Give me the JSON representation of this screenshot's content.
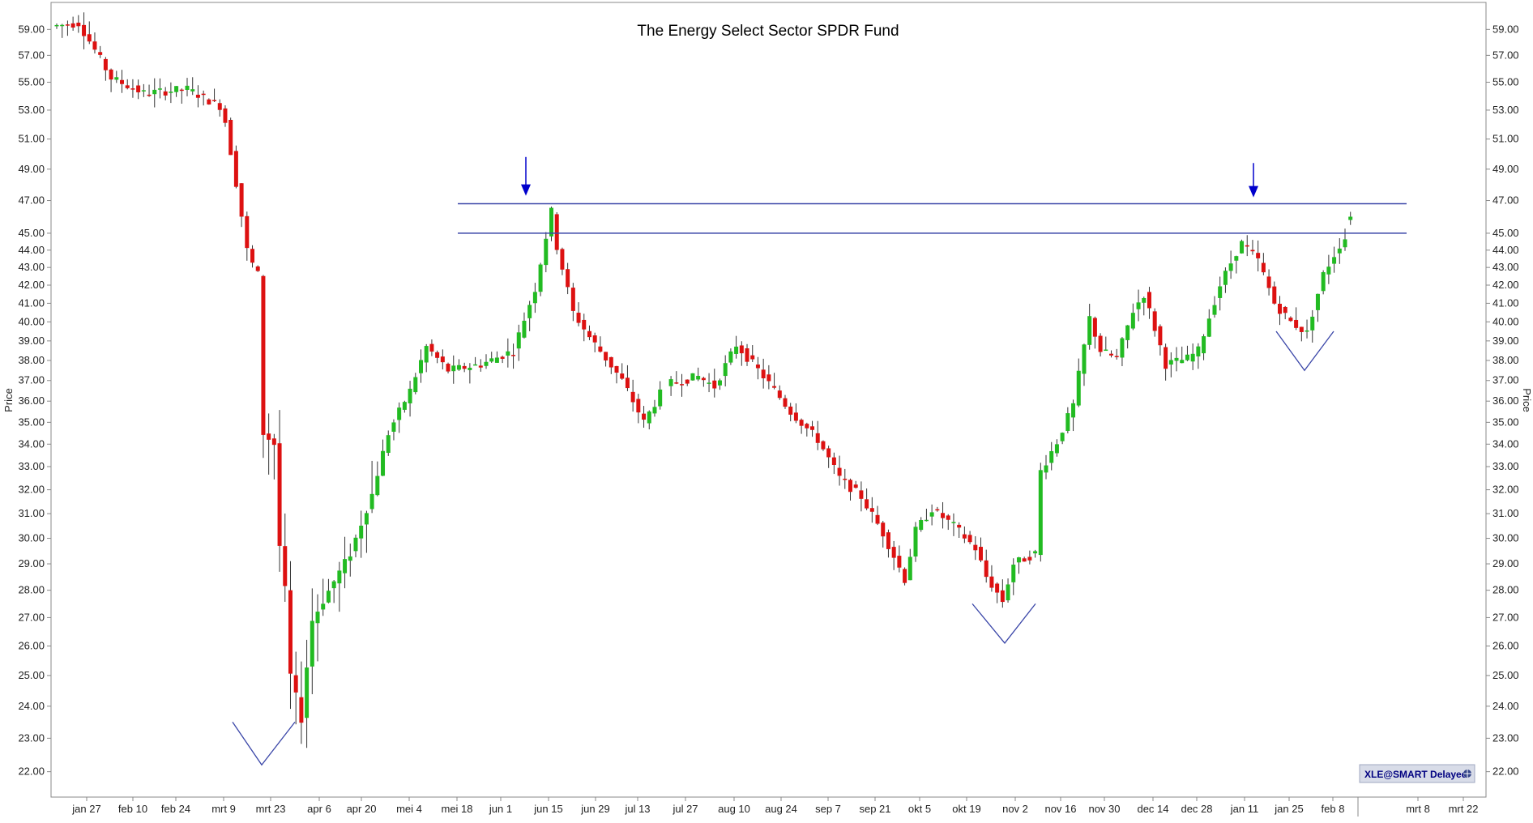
{
  "colors": {
    "up": "#22bb22",
    "down": "#dd1111",
    "wick": "#333333",
    "annotation": "#0000cc",
    "pattern": "#3a46a8",
    "axis": "#888888",
    "badge_bg": "#d8dce8"
  },
  "badge": {
    "text": "XLE@SMART Delayed",
    "icon": "globe-icon"
  },
  "chart_data": {
    "type": "candlestick",
    "title": "The Energy Select Sector SPDR Fund",
    "ylabel_left": "Price",
    "ylabel_right": "Price",
    "y_scale": "log",
    "ylim": [
      21.5,
      60.5
    ],
    "y_ticks": [
      "22.00",
      "23.00",
      "24.00",
      "25.00",
      "26.00",
      "27.00",
      "28.00",
      "29.00",
      "30.00",
      "31.00",
      "32.00",
      "33.00",
      "34.00",
      "35.00",
      "36.00",
      "37.00",
      "38.00",
      "39.00",
      "40.00",
      "41.00",
      "42.00",
      "43.00",
      "44.00",
      "45.00",
      "47.00",
      "49.00",
      "51.00",
      "53.00",
      "55.00",
      "57.00",
      "59.00"
    ],
    "x_labels": [
      "jan 27",
      "feb 10",
      "feb 24",
      "mrt 9",
      "mrt 23",
      "apr 6",
      "apr 20",
      "mei 4",
      "mei 18",
      "jun 1",
      "jun 15",
      "jun 29",
      "jul 13",
      "jul 27",
      "aug 10",
      "aug 24",
      "sep 7",
      "sep 21",
      "okt 5",
      "okt 19",
      "nov 2",
      "nov 16",
      "nov 30",
      "dec 14",
      "dec 28",
      "jan 11",
      "jan 25",
      "feb 8",
      "mrt 8",
      "mrt 22"
    ],
    "horizontal_lines": [
      {
        "y": 46.8,
        "from_label": "mei 18",
        "to_label": "mrt 8"
      },
      {
        "y": 45.0,
        "from_label": "mei 18",
        "to_label": "mrt 8"
      }
    ],
    "arrows": [
      {
        "near": "jun 15",
        "y_top": 49.8,
        "y_tip": 47.3
      },
      {
        "near": "jan 11",
        "y_top": 49.4,
        "y_tip": 47.2
      }
    ],
    "v_patterns": [
      {
        "near": "mrt 23",
        "top": 23.5,
        "bottom": 22.2
      },
      {
        "near": "nov 2",
        "top": 27.5,
        "bottom": 26.1
      },
      {
        "near": "jan 25",
        "top": 39.5,
        "bottom": 37.5
      }
    ],
    "waypoints": [
      [
        0,
        59.3
      ],
      [
        4,
        59.5
      ],
      [
        10,
        55.3
      ],
      [
        16,
        54.2
      ],
      [
        24,
        54.5
      ],
      [
        30,
        53.3
      ],
      [
        31,
        52.2
      ],
      [
        35,
        44.0
      ],
      [
        36,
        43.2
      ],
      [
        37,
        42.6
      ],
      [
        38,
        34.5
      ],
      [
        40,
        34.0
      ],
      [
        41,
        29.7
      ],
      [
        42,
        28.0
      ],
      [
        43,
        25.0
      ],
      [
        45,
        23.6
      ],
      [
        46,
        25.3
      ],
      [
        47,
        26.9
      ],
      [
        54,
        29.4
      ],
      [
        58,
        31.8
      ],
      [
        61,
        34.5
      ],
      [
        65,
        36.5
      ],
      [
        68,
        38.7
      ],
      [
        72,
        37.5
      ],
      [
        78,
        37.8
      ],
      [
        84,
        38.5
      ],
      [
        88,
        41.8
      ],
      [
        91,
        46.3
      ],
      [
        92,
        44.2
      ],
      [
        95,
        40.5
      ],
      [
        98,
        39.2
      ],
      [
        104,
        37.0
      ],
      [
        108,
        35.0
      ],
      [
        112,
        36.8
      ],
      [
        118,
        37.2
      ],
      [
        121,
        36.7
      ],
      [
        125,
        38.8
      ],
      [
        130,
        37.2
      ],
      [
        135,
        35.5
      ],
      [
        140,
        34.2
      ],
      [
        144,
        32.5
      ],
      [
        148,
        31.7
      ],
      [
        152,
        30.2
      ],
      [
        156,
        28.4
      ],
      [
        158,
        30.3
      ],
      [
        161,
        31.2
      ],
      [
        165,
        30.5
      ],
      [
        169,
        29.6
      ],
      [
        171,
        28.5
      ],
      [
        174,
        27.6
      ],
      [
        176,
        29.0
      ],
      [
        180,
        29.4
      ],
      [
        181,
        32.8
      ],
      [
        184,
        34.1
      ],
      [
        187,
        35.8
      ],
      [
        190,
        40.2
      ],
      [
        192,
        38.5
      ],
      [
        195,
        38.1
      ],
      [
        198,
        40.6
      ],
      [
        200,
        41.5
      ],
      [
        204,
        37.8
      ],
      [
        208,
        38.1
      ],
      [
        210,
        38.5
      ],
      [
        214,
        42.0
      ],
      [
        217,
        43.9
      ],
      [
        218,
        44.4
      ],
      [
        221,
        43.4
      ],
      [
        224,
        41.0
      ],
      [
        227,
        40.0
      ],
      [
        230,
        39.4
      ],
      [
        233,
        42.6
      ],
      [
        236,
        44.3
      ],
      [
        237,
        44.7
      ]
    ],
    "last_candle": {
      "index": 238,
      "open": 45.8,
      "close": 46.0,
      "high": 46.3,
      "low": 45.5
    }
  }
}
